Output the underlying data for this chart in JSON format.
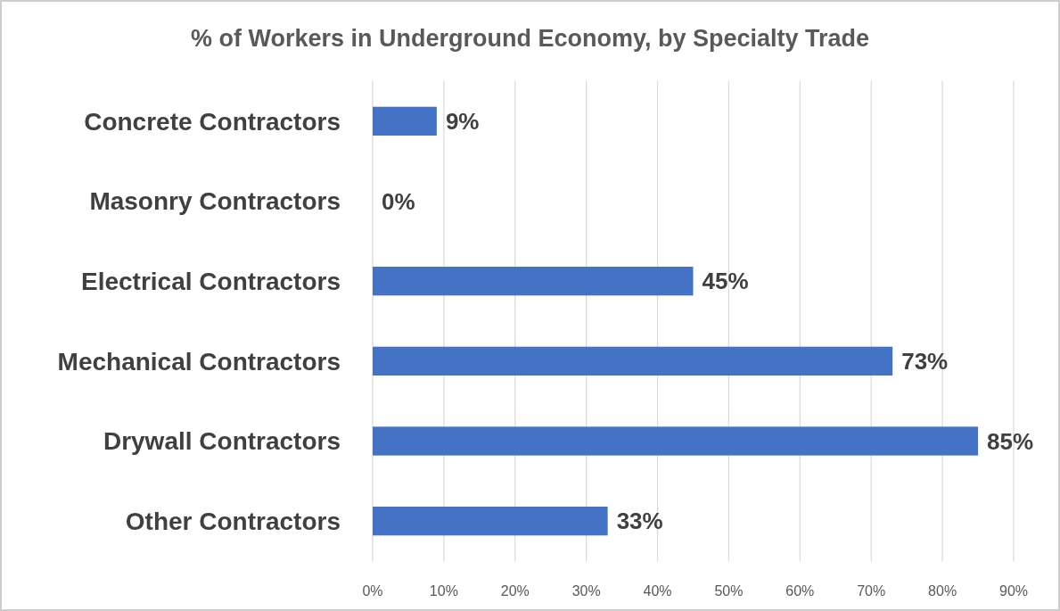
{
  "chart_data": {
    "type": "bar",
    "orientation": "horizontal",
    "title": "% of Workers in Underground Economy, by Specialty Trade",
    "categories": [
      "Concrete Contractors",
      "Masonry Contractors",
      "Electrical Contractors",
      "Mechanical Contractors",
      "Drywall Contractors",
      "Other Contractors"
    ],
    "values": [
      9,
      0,
      45,
      73,
      85,
      33
    ],
    "value_labels": [
      "9%",
      "0%",
      "45%",
      "73%",
      "85%",
      "33%"
    ],
    "color": "#4472c4",
    "xlim": [
      0,
      90
    ],
    "xticks": [
      {
        "value": 0,
        "label": "0%"
      },
      {
        "value": 10,
        "label": "10%"
      },
      {
        "value": 20,
        "label": "20%"
      },
      {
        "value": 30,
        "label": "30%"
      },
      {
        "value": 40,
        "label": "40%"
      },
      {
        "value": 50,
        "label": "50%"
      },
      {
        "value": 60,
        "label": "60%"
      },
      {
        "value": 70,
        "label": "70%"
      },
      {
        "value": 80,
        "label": "80%"
      },
      {
        "value": 90,
        "label": "90%"
      }
    ],
    "grid": "x"
  }
}
